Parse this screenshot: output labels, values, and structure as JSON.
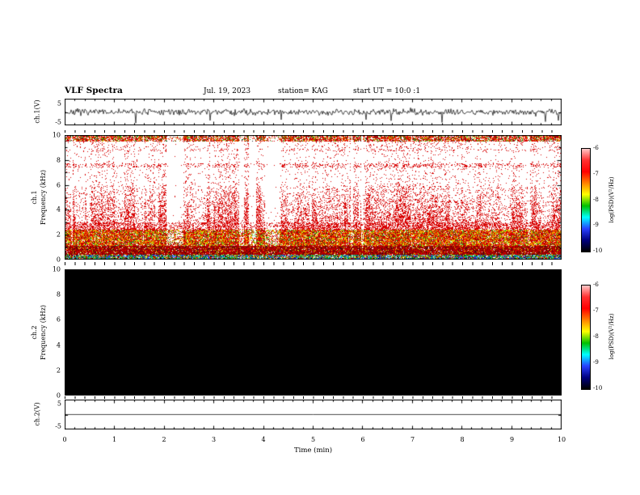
{
  "header": {
    "title": "VLF Spectra",
    "date": "Jul. 19, 2023",
    "station": "station= KAG",
    "start_ut": "start UT = 10:0 :1"
  },
  "xaxis": {
    "label": "Time (min)",
    "ticks": [
      "0",
      "1",
      "2",
      "3",
      "4",
      "5",
      "6",
      "7",
      "8",
      "9",
      "10"
    ],
    "xlim": [
      0,
      10
    ]
  },
  "colorbar": {
    "label": "log(PSD)(V²/Hz)",
    "ticks": [
      "-6",
      "-7",
      "-8",
      "-9",
      "-10"
    ],
    "zlim": [
      -10,
      -6
    ],
    "colors": [
      "#ffc8c8",
      "#ff3030",
      "#ff0000",
      "#ff8000",
      "#ffff00",
      "#00c000",
      "#00ffff",
      "#2840ff",
      "#000080",
      "#000000"
    ]
  },
  "panels": {
    "ch1_waveform": {
      "ylabel": "ch.1(V)",
      "ytick_top": "5",
      "ytick_bottom": "-5"
    },
    "ch1_spectrogram": {
      "ylabel_channel": "ch.1",
      "ylabel_axis": "Frequency (kHz)",
      "yticks": [
        "10",
        "8",
        "6",
        "4",
        "2",
        "0"
      ]
    },
    "ch2_spectrogram": {
      "ylabel_channel": "ch.2",
      "ylabel_axis": "Frequency (kHz)",
      "yticks": [
        "10",
        "8",
        "6",
        "4",
        "2",
        "0"
      ]
    },
    "ch2_waveform": {
      "ylabel": "ch.2(V)",
      "ytick_top": "5",
      "ytick_bottom": "-5"
    }
  },
  "chart_data": [
    {
      "type": "line",
      "panel": "ch.1(V) waveform",
      "xlabel": "Time (min)",
      "ylabel": "ch.1(V)",
      "xlim": [
        0,
        10
      ],
      "ylim": [
        -5,
        5
      ],
      "baseline_v": 0,
      "noise_amplitude_v": 1,
      "spike_min_v": -4,
      "series_description": "continuous broadband noise centered at 0 V (~±1 V) with intermittent impulsive downward spikes reaching about -4 V throughout the 10-minute record"
    },
    {
      "type": "heatmap",
      "panel": "ch.1 spectrogram",
      "xlabel": "Time (min)",
      "ylabel": "Frequency (kHz)",
      "zlabel": "log(PSD)(V²/Hz)",
      "xlim": [
        0,
        10
      ],
      "ylim": [
        0,
        10
      ],
      "zlim": [
        -10,
        -6
      ],
      "features": [
        {
          "freq_khz": [
            9.5,
            10
          ],
          "description": "strong continuous red band with scattered yellow/green specks"
        },
        {
          "freq_khz": [
            8.5,
            8.8
          ],
          "description": "faint dotted red horizontal line"
        },
        {
          "freq_khz": [
            7.4,
            7.7
          ],
          "description": "dotted red horizontal band"
        },
        {
          "freq_khz": [
            3,
            7
          ],
          "description": "impulsive red vertical striations, density increasing toward lower frequency, with white vertical gaps"
        },
        {
          "freq_khz": [
            1.2,
            3
          ],
          "description": "dense red/orange/yellow emission band with green patches (~1e-7 V²/Hz)"
        },
        {
          "freq_khz": [
            0.5,
            1.2
          ],
          "description": "nearly solid dark-red/black high-power band"
        },
        {
          "freq_khz": [
            0,
            0.5
          ],
          "description": "multicoloured speckle row (green/cyan/blue/yellow/red)"
        }
      ]
    },
    {
      "type": "heatmap",
      "panel": "ch.2 spectrogram",
      "xlabel": "Time (min)",
      "ylabel": "Frequency (kHz)",
      "zlabel": "log(PSD)(V²/Hz)",
      "xlim": [
        0,
        10
      ],
      "ylim": [
        0,
        10
      ],
      "zlim": [
        -10,
        -6
      ],
      "description": "uniform minimum power: entire panel black (PSD ≤ 1e-10), no signal on channel 2"
    },
    {
      "type": "line",
      "panel": "ch.2(V) waveform",
      "xlabel": "Time (min)",
      "ylabel": "ch.2(V)",
      "xlim": [
        0,
        10
      ],
      "ylim": [
        -5,
        5
      ],
      "baseline_v": 0,
      "series_description": "perfectly flat line at 0 V for the entire 10-minute record"
    }
  ]
}
